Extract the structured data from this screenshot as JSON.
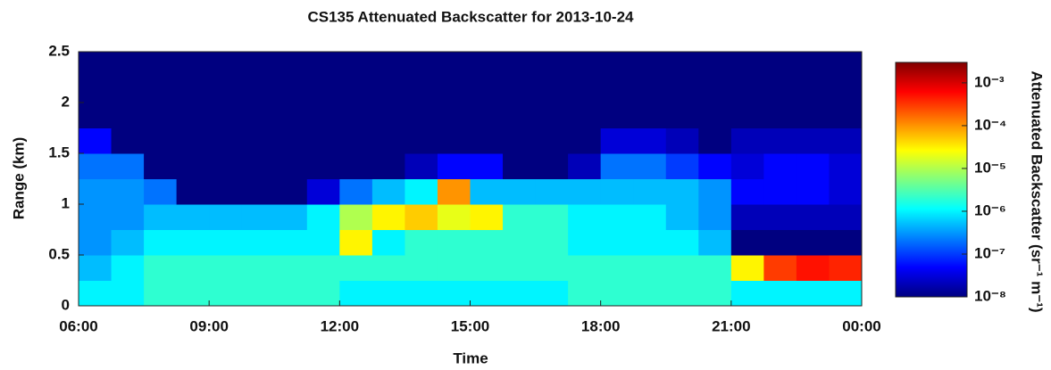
{
  "chart_data": {
    "type": "heatmap",
    "title": "CS135 Attenuated Backscatter for 2013-10-24",
    "x_label": "Time",
    "y_label": "Range (km)",
    "colorbar_label": "Attenuated Backscatter (sr⁻¹ m⁻¹)",
    "colormap": "jet",
    "color_scale": "log",
    "xbins": [
      6,
      6.75,
      7.5,
      8.25,
      9,
      9.75,
      10.5,
      11.25,
      12,
      12.75,
      13.5,
      14.25,
      15,
      15.75,
      16.5,
      17.25,
      18,
      18.75,
      19.5,
      20.25,
      21,
      21.75,
      22.5,
      23.25,
      24
    ],
    "ybins": [
      0,
      0.25,
      0.5,
      0.75,
      1,
      1.25,
      1.5,
      1.75,
      2,
      2.25,
      2.5
    ],
    "values": [
      [
        1e-06,
        1e-06,
        2e-06,
        2e-06,
        2e-06,
        2e-06,
        2e-06,
        2e-06,
        1e-06,
        1e-06,
        1e-06,
        1e-06,
        1e-06,
        1e-06,
        1e-06,
        2e-06,
        2e-06,
        2e-06,
        2e-06,
        2e-06,
        1e-06,
        1e-06,
        1e-06,
        1e-06
      ],
      [
        5e-07,
        1e-06,
        2e-06,
        2e-06,
        2e-06,
        2e-06,
        2e-06,
        2e-06,
        2e-06,
        2e-06,
        2e-06,
        2e-06,
        2e-06,
        2e-06,
        2e-06,
        2e-06,
        2e-06,
        2e-06,
        2e-06,
        2e-06,
        3e-05,
        0.0003,
        0.0005,
        0.0004
      ],
      [
        3e-07,
        5e-07,
        1e-06,
        1e-06,
        1e-06,
        1e-06,
        1e-06,
        1e-06,
        3e-05,
        1e-06,
        2e-06,
        2e-06,
        2e-06,
        2e-06,
        2e-06,
        1e-06,
        1e-06,
        1e-06,
        1e-06,
        5e-07,
        1e-08,
        1e-08,
        1e-08,
        1e-08
      ],
      [
        3e-07,
        3e-07,
        5e-07,
        5e-07,
        5e-07,
        5e-07,
        5e-07,
        1e-06,
        1e-05,
        3e-05,
        5e-05,
        2e-05,
        3e-05,
        2e-06,
        2e-06,
        1e-06,
        1e-06,
        1e-06,
        5e-07,
        3e-07,
        2e-08,
        2e-08,
        2e-08,
        2e-08
      ],
      [
        3e-07,
        3e-07,
        2e-07,
        1e-08,
        1e-08,
        1e-08,
        1e-08,
        3e-08,
        2e-07,
        5e-07,
        1e-06,
        0.0001,
        5e-07,
        5e-07,
        5e-07,
        5e-07,
        5e-07,
        5e-07,
        5e-07,
        3e-07,
        5e-08,
        5e-08,
        5e-08,
        3e-08
      ],
      [
        2e-07,
        2e-07,
        1e-08,
        1e-08,
        1e-08,
        1e-08,
        1e-08,
        1e-08,
        1e-08,
        1e-08,
        2e-08,
        5e-08,
        5e-08,
        1e-08,
        1e-08,
        2e-08,
        2e-07,
        2e-07,
        1e-07,
        5e-08,
        3e-08,
        5e-08,
        5e-08,
        3e-08
      ],
      [
        5e-08,
        1e-08,
        1e-08,
        1e-08,
        1e-08,
        1e-08,
        1e-08,
        1e-08,
        1e-08,
        1e-08,
        1e-08,
        1e-08,
        1e-08,
        1e-08,
        1e-08,
        1e-08,
        3e-08,
        3e-08,
        2e-08,
        1e-08,
        2e-08,
        2e-08,
        2e-08,
        2e-08
      ],
      [
        1e-08,
        1e-08,
        1e-08,
        1e-08,
        1e-08,
        1e-08,
        1e-08,
        1e-08,
        1e-08,
        1e-08,
        1e-08,
        1e-08,
        1e-08,
        1e-08,
        1e-08,
        1e-08,
        1e-08,
        1e-08,
        1e-08,
        1e-08,
        1e-08,
        1e-08,
        1e-08,
        1e-08
      ],
      [
        1e-08,
        1e-08,
        1e-08,
        1e-08,
        1e-08,
        1e-08,
        1e-08,
        1e-08,
        1e-08,
        1e-08,
        1e-08,
        1e-08,
        1e-08,
        1e-08,
        1e-08,
        1e-08,
        1e-08,
        1e-08,
        1e-08,
        1e-08,
        1e-08,
        1e-08,
        1e-08,
        1e-08
      ],
      [
        1e-08,
        1e-08,
        1e-08,
        1e-08,
        1e-08,
        1e-08,
        1e-08,
        1e-08,
        1e-08,
        1e-08,
        1e-08,
        1e-08,
        1e-08,
        1e-08,
        1e-08,
        1e-08,
        1e-08,
        1e-08,
        1e-08,
        1e-08,
        1e-08,
        1e-08,
        1e-08,
        1e-08
      ]
    ],
    "xlim": [
      6,
      24
    ],
    "xticks": [
      {
        "value": 6,
        "label": "06:00"
      },
      {
        "value": 9,
        "label": "09:00"
      },
      {
        "value": 12,
        "label": "12:00"
      },
      {
        "value": 15,
        "label": "15:00"
      },
      {
        "value": 18,
        "label": "18:00"
      },
      {
        "value": 21,
        "label": "21:00"
      },
      {
        "value": 24,
        "label": "00:00"
      }
    ],
    "ylim": [
      0,
      2.5
    ],
    "yticks": [
      0,
      0.5,
      1,
      1.5,
      2,
      2.5
    ],
    "clim": [
      1e-08,
      0.003
    ],
    "cticks": [
      {
        "value": 1e-08,
        "label": "10⁻⁸"
      },
      {
        "value": 1e-07,
        "label": "10⁻⁷"
      },
      {
        "value": 1e-06,
        "label": "10⁻⁶"
      },
      {
        "value": 1e-05,
        "label": "10⁻⁵"
      },
      {
        "value": 0.0001,
        "label": "10⁻⁴"
      },
      {
        "value": 0.001,
        "label": "10⁻³"
      }
    ]
  }
}
